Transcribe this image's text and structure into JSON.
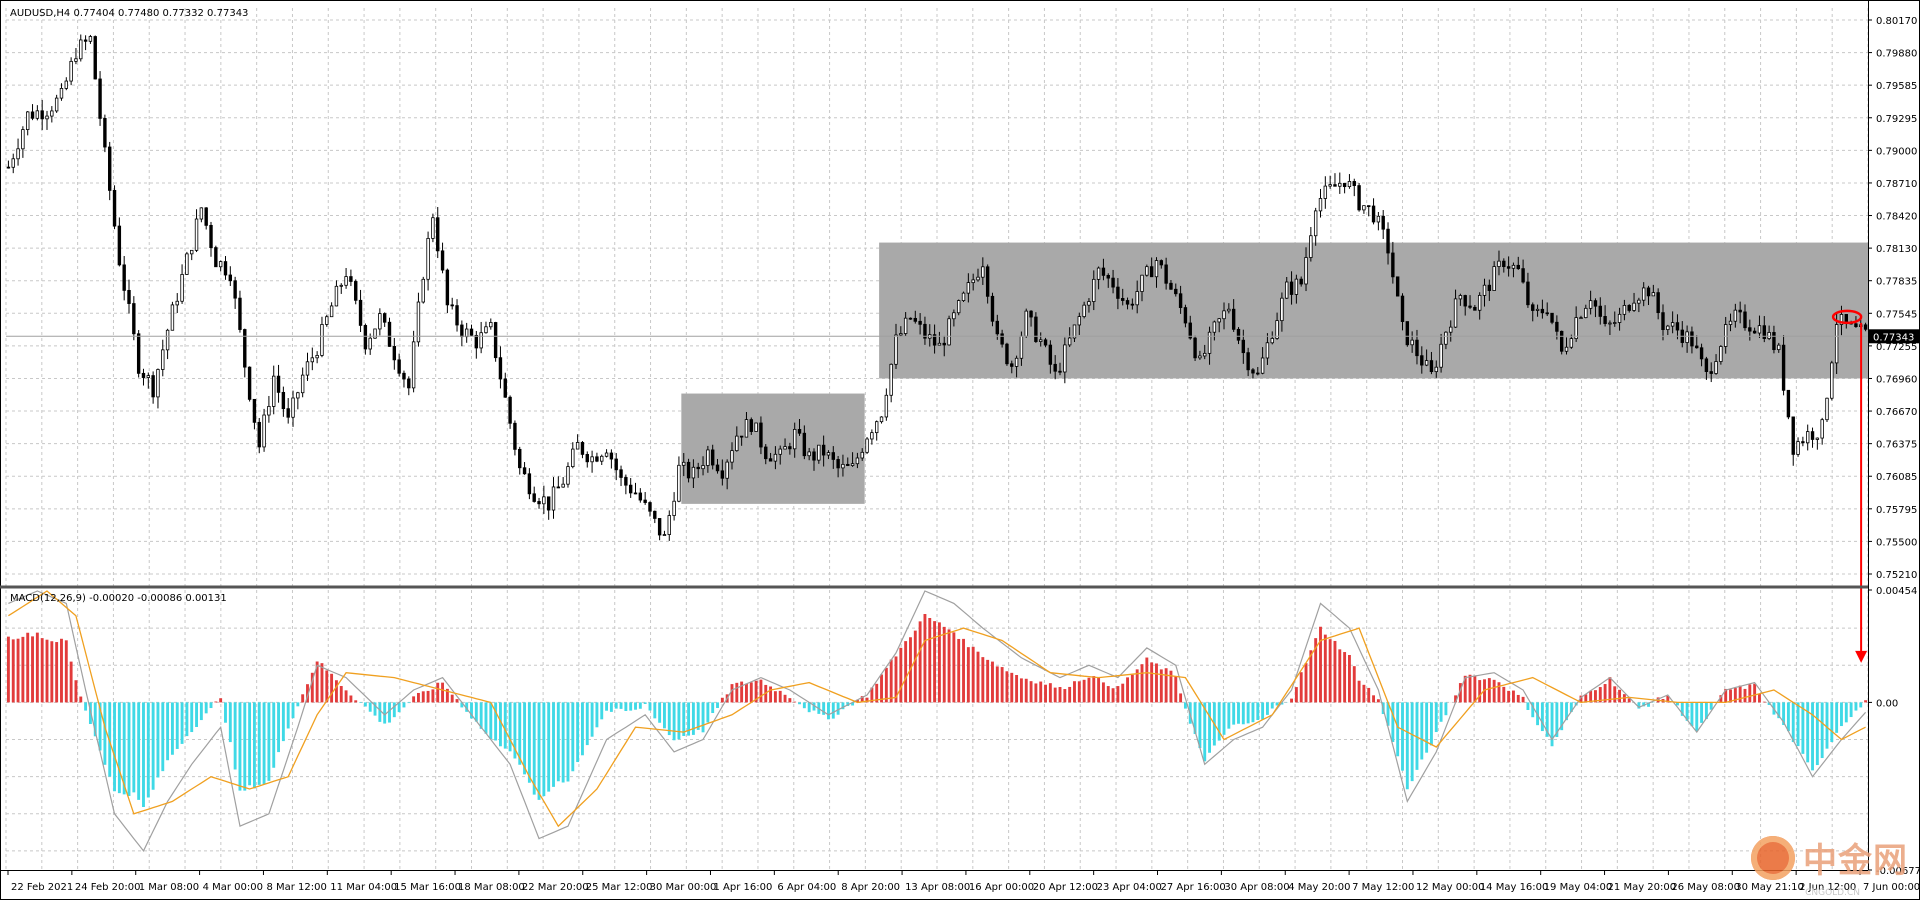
{
  "header": {
    "symbol_line": "AUDUSD,H4  0.77404 0.77480 0.77332 0.77343",
    "macd_line": "MACD(12,26,9) -0.00020 -0.00086 0.00131"
  },
  "watermark": {
    "text": "中金网",
    "sub": "CNGOLD.CN"
  },
  "colors": {
    "candle": "#000000",
    "box": "#a9a9a9",
    "hist_pos": "#e23b3b",
    "hist_neg": "#3fd9e6",
    "signal": "#f0a020",
    "macd": "#a0a0a0",
    "annotation": "#ff0000",
    "grid": "#c8c8c8",
    "price_line": "#a0a0a0"
  },
  "chart_data": [
    {
      "type": "candlestick",
      "symbol": "AUDUSD",
      "timeframe": "H4",
      "ylim": [
        0.7521,
        0.8017
      ],
      "y_ticks": [
        "0.80170",
        "0.79880",
        "0.79585",
        "0.79295",
        "0.79000",
        "0.78710",
        "0.78420",
        "0.78130",
        "0.77835",
        "0.77545",
        "0.77255",
        "0.76960",
        "0.76670",
        "0.76375",
        "0.76085",
        "0.75795",
        "0.75500",
        "0.75210"
      ],
      "current_price": "0.77343",
      "x_tick_labels": [
        "22 Feb 2021",
        "24 Feb 20:00",
        "1 Mar 08:00",
        "4 Mar 00:00",
        "8 Mar 12:00",
        "11 Mar 04:00",
        "15 Mar 16:00",
        "18 Mar 08:00",
        "22 Mar 20:00",
        "25 Mar 12:00",
        "30 Mar 00:00",
        "1 Apr 16:00",
        "6 Apr 04:00",
        "8 Apr 20:00",
        "13 Apr 08:00",
        "16 Apr 00:00",
        "20 Apr 12:00",
        "23 Apr 04:00",
        "27 Apr 16:00",
        "30 Apr 08:00",
        "4 May 20:00",
        "7 May 12:00",
        "12 May 00:00",
        "14 May 16:00",
        "19 May 04:00",
        "21 May 20:00",
        "26 May 08:00",
        "30 May 21:10",
        "2 Jun 12:00",
        "7 Jun 00:00"
      ],
      "price_path": [
        [
          0,
          0.788
        ],
        [
          4,
          0.7925
        ],
        [
          8,
          0.793
        ],
        [
          11,
          0.794
        ],
        [
          14,
          0.798
        ],
        [
          17,
          0.799
        ],
        [
          20,
          0.789
        ],
        [
          23,
          0.78
        ],
        [
          27,
          0.771
        ],
        [
          30,
          0.769
        ],
        [
          33,
          0.774
        ],
        [
          37,
          0.78
        ],
        [
          40,
          0.7845
        ],
        [
          43,
          0.78
        ],
        [
          46,
          0.779
        ],
        [
          49,
          0.771
        ],
        [
          52,
          0.764
        ],
        [
          55,
          0.77
        ],
        [
          58,
          0.766
        ],
        [
          61,
          0.77
        ],
        [
          64,
          0.7725
        ],
        [
          67,
          0.776
        ],
        [
          70,
          0.779
        ],
        [
          74,
          0.773
        ],
        [
          77,
          0.775
        ],
        [
          80,
          0.772
        ],
        [
          83,
          0.769
        ],
        [
          86,
          0.779
        ],
        [
          88,
          0.784
        ],
        [
          91,
          0.776
        ],
        [
          94,
          0.774
        ],
        [
          97,
          0.773
        ],
        [
          100,
          0.774
        ],
        [
          103,
          0.768
        ],
        [
          106,
          0.762
        ],
        [
          109,
          0.76
        ],
        [
          112,
          0.759
        ],
        [
          115,
          0.761
        ],
        [
          118,
          0.764
        ],
        [
          121,
          0.763
        ],
        [
          124,
          0.764
        ],
        [
          127,
          0.761
        ],
        [
          130,
          0.76
        ],
        [
          133,
          0.758
        ],
        [
          136,
          0.756
        ],
        [
          139,
          0.762
        ],
        [
          142,
          0.7615
        ],
        [
          145,
          0.7635
        ],
        [
          148,
          0.762
        ],
        [
          151,
          0.765
        ],
        [
          154,
          0.766
        ],
        [
          157,
          0.7635
        ],
        [
          160,
          0.763
        ],
        [
          163,
          0.765
        ],
        [
          166,
          0.763
        ],
        [
          169,
          0.7635
        ],
        [
          172,
          0.762
        ],
        [
          175,
          0.762
        ],
        [
          178,
          0.765
        ],
        [
          181,
          0.767
        ],
        [
          184,
          0.773
        ],
        [
          187,
          0.775
        ],
        [
          190,
          0.7735
        ],
        [
          193,
          0.7725
        ],
        [
          196,
          0.775
        ],
        [
          199,
          0.7775
        ],
        [
          202,
          0.78
        ],
        [
          205,
          0.773
        ],
        [
          208,
          0.771
        ],
        [
          211,
          0.775
        ],
        [
          214,
          0.773
        ],
        [
          217,
          0.77
        ],
        [
          220,
          0.773
        ],
        [
          223,
          0.776
        ],
        [
          226,
          0.779
        ],
        [
          229,
          0.778
        ],
        [
          232,
          0.776
        ],
        [
          235,
          0.778
        ],
        [
          238,
          0.78
        ],
        [
          241,
          0.7775
        ],
        [
          244,
          0.775
        ],
        [
          247,
          0.771
        ],
        [
          250,
          0.774
        ],
        [
          253,
          0.776
        ],
        [
          256,
          0.772
        ],
        [
          259,
          0.77
        ],
        [
          262,
          0.774
        ],
        [
          265,
          0.7775
        ],
        [
          268,
          0.778
        ],
        [
          271,
          0.785
        ],
        [
          274,
          0.786
        ],
        [
          277,
          0.787
        ],
        [
          280,
          0.785
        ],
        [
          283,
          0.784
        ],
        [
          286,
          0.781
        ],
        [
          289,
          0.774
        ],
        [
          292,
          0.772
        ],
        [
          295,
          0.77
        ],
        [
          298,
          0.774
        ],
        [
          301,
          0.777
        ],
        [
          304,
          0.776
        ],
        [
          307,
          0.778
        ],
        [
          310,
          0.78
        ],
        [
          313,
          0.779
        ],
        [
          316,
          0.775
        ],
        [
          319,
          0.776
        ],
        [
          322,
          0.772
        ],
        [
          325,
          0.775
        ],
        [
          328,
          0.777
        ],
        [
          331,
          0.774
        ],
        [
          334,
          0.775
        ],
        [
          337,
          0.777
        ],
        [
          340,
          0.7775
        ],
        [
          343,
          0.7745
        ],
        [
          346,
          0.774
        ],
        [
          349,
          0.773
        ],
        [
          352,
          0.77
        ],
        [
          355,
          0.773
        ],
        [
          358,
          0.775
        ],
        [
          361,
          0.7745
        ],
        [
          364,
          0.774
        ],
        [
          367,
          0.772
        ],
        [
          370,
          0.764
        ],
        [
          373,
          0.765
        ],
        [
          376,
          0.7655
        ],
        [
          379,
          0.7748
        ],
        [
          382,
          0.774
        ],
        [
          385,
          0.7735
        ]
      ],
      "macd_ylim": [
        -0.00677,
        0.00454
      ],
      "macd_y_ticks": [
        "0.00454",
        "0.00",
        "-0.00677"
      ],
      "macd_values": [
        [
          0,
          0.004
        ],
        [
          6,
          0.0045
        ],
        [
          12,
          0.004
        ],
        [
          16,
          0.0005
        ],
        [
          22,
          -0.0045
        ],
        [
          28,
          -0.006
        ],
        [
          33,
          -0.004
        ],
        [
          38,
          -0.0025
        ],
        [
          44,
          -0.001
        ],
        [
          48,
          -0.005
        ],
        [
          54,
          -0.0045
        ],
        [
          60,
          -0.001
        ],
        [
          64,
          0.0015
        ],
        [
          70,
          0.001
        ],
        [
          78,
          -0.0005
        ],
        [
          84,
          0.0005
        ],
        [
          90,
          0.001
        ],
        [
          96,
          -0.0005
        ],
        [
          104,
          -0.0025
        ],
        [
          110,
          -0.0055
        ],
        [
          116,
          -0.005
        ],
        [
          124,
          -0.0015
        ],
        [
          132,
          -0.0005
        ],
        [
          138,
          -0.002
        ],
        [
          144,
          -0.0015
        ],
        [
          150,
          0.0005
        ],
        [
          156,
          0.001
        ],
        [
          162,
          0.0005
        ],
        [
          170,
          -0.0005
        ],
        [
          178,
          0.0003
        ],
        [
          184,
          0.002
        ],
        [
          190,
          0.0045
        ],
        [
          196,
          0.004
        ],
        [
          202,
          0.003
        ],
        [
          210,
          0.0018
        ],
        [
          218,
          0.001
        ],
        [
          224,
          0.0015
        ],
        [
          230,
          0.001
        ],
        [
          236,
          0.0022
        ],
        [
          242,
          0.0015
        ],
        [
          248,
          -0.0025
        ],
        [
          254,
          -0.0015
        ],
        [
          260,
          -0.001
        ],
        [
          266,
          0.0005
        ],
        [
          272,
          0.004
        ],
        [
          278,
          0.003
        ],
        [
          284,
          0.0005
        ],
        [
          290,
          -0.004
        ],
        [
          296,
          -0.002
        ],
        [
          302,
          0.001
        ],
        [
          308,
          0.0012
        ],
        [
          314,
          0.0005
        ],
        [
          320,
          -0.0015
        ],
        [
          326,
          0.0002
        ],
        [
          332,
          0.001
        ],
        [
          338,
          -0.0002
        ],
        [
          344,
          0.0003
        ],
        [
          350,
          -0.0012
        ],
        [
          356,
          0.0005
        ],
        [
          362,
          0.0008
        ],
        [
          368,
          -0.0008
        ],
        [
          374,
          -0.003
        ],
        [
          380,
          -0.0015
        ],
        [
          385,
          -0.0004
        ]
      ],
      "signal_values": [
        [
          0,
          0.0035
        ],
        [
          8,
          0.0045
        ],
        [
          14,
          0.0035
        ],
        [
          20,
          -0.001
        ],
        [
          26,
          -0.0045
        ],
        [
          34,
          -0.004
        ],
        [
          42,
          -0.003
        ],
        [
          50,
          -0.0035
        ],
        [
          58,
          -0.003
        ],
        [
          64,
          -0.0005
        ],
        [
          70,
          0.0012
        ],
        [
          80,
          0.001
        ],
        [
          90,
          0.0005
        ],
        [
          100,
          0.0
        ],
        [
          108,
          -0.003
        ],
        [
          114,
          -0.005
        ],
        [
          122,
          -0.0035
        ],
        [
          130,
          -0.001
        ],
        [
          140,
          -0.0012
        ],
        [
          150,
          -0.0005
        ],
        [
          158,
          0.0005
        ],
        [
          166,
          0.0008
        ],
        [
          176,
          0.0
        ],
        [
          184,
          0.0002
        ],
        [
          190,
          0.0025
        ],
        [
          198,
          0.003
        ],
        [
          206,
          0.0025
        ],
        [
          216,
          0.0012
        ],
        [
          226,
          0.001
        ],
        [
          236,
          0.0012
        ],
        [
          244,
          0.001
        ],
        [
          252,
          -0.0015
        ],
        [
          262,
          -0.0005
        ],
        [
          272,
          0.0025
        ],
        [
          280,
          0.003
        ],
        [
          288,
          -0.001
        ],
        [
          296,
          -0.0018
        ],
        [
          306,
          0.0005
        ],
        [
          316,
          0.001
        ],
        [
          326,
          0.0
        ],
        [
          336,
          0.0002
        ],
        [
          346,
          0.0
        ],
        [
          356,
          0.0
        ],
        [
          366,
          0.0005
        ],
        [
          374,
          -0.0005
        ],
        [
          380,
          -0.0015
        ],
        [
          385,
          -0.001
        ]
      ],
      "ranges": [
        {
          "from": 140,
          "to": 177,
          "high": 0.7685,
          "low": 0.759
        },
        {
          "from": 181,
          "to": 385,
          "high": 0.7815,
          "low": 0.7698
        }
      ]
    }
  ]
}
